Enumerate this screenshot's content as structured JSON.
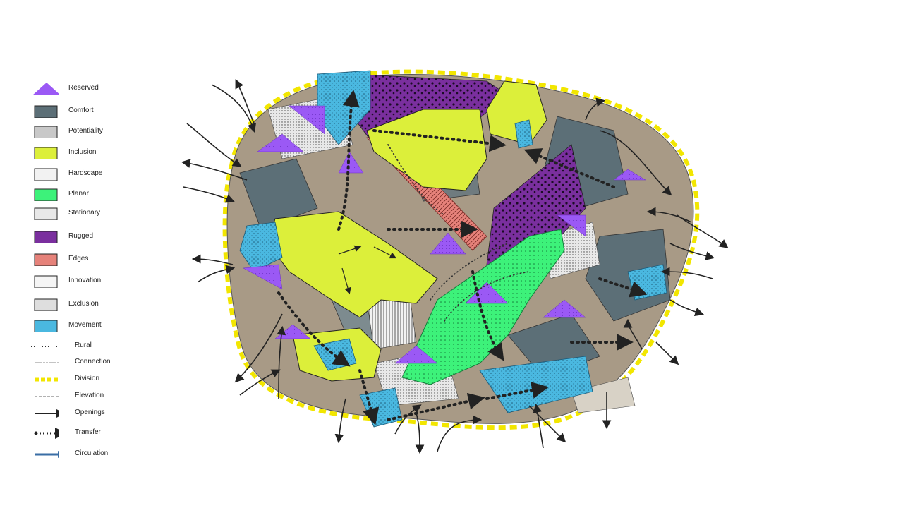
{
  "legend": {
    "items": [
      {
        "label": "Reserved",
        "swatch": "triangle",
        "color": "#9b59f5"
      },
      {
        "label": "Comfort",
        "swatch": "box",
        "color": "#5c6f77"
      },
      {
        "label": "Potentiality",
        "swatch": "box",
        "color": "#c8c8c8"
      },
      {
        "label": "Inclusion",
        "swatch": "box",
        "color": "#dcef3a"
      },
      {
        "label": "Hardscape",
        "swatch": "box",
        "color": "#f2f2f2"
      },
      {
        "label": "Planar",
        "swatch": "box",
        "color": "#3df27a"
      },
      {
        "label": "Stationary",
        "swatch": "box",
        "color": "#e8e8e8"
      },
      {
        "label": "Rugged",
        "swatch": "box",
        "color": "#7a2f9e"
      },
      {
        "label": "Edges",
        "swatch": "box",
        "color": "#e6827a"
      },
      {
        "label": "Innovation",
        "swatch": "box",
        "color": "#f5f5f5"
      },
      {
        "label": "Exclusion",
        "swatch": "box",
        "color": "#dedede"
      },
      {
        "label": "Movement",
        "swatch": "box",
        "color": "#4ab8e0"
      },
      {
        "label": "Rural",
        "swatch": "dotted-line",
        "color": "#333333"
      },
      {
        "label": "Connection",
        "swatch": "thin-line",
        "color": "#888888"
      },
      {
        "label": "Division",
        "swatch": "yellow-dash",
        "color": "#f2e600"
      },
      {
        "label": "Elevation",
        "swatch": "dashed-line",
        "color": "#666666"
      },
      {
        "label": "Openings",
        "swatch": "arrow",
        "color": "#222222"
      },
      {
        "label": "Transfer",
        "swatch": "dotted-arrow",
        "color": "#222222"
      },
      {
        "label": "Circulation",
        "swatch": "blue-arrow",
        "color": "#3a6ea5"
      }
    ]
  },
  "map": {
    "colors": {
      "reserved": "#9b59f5",
      "comfort": "#5c6f77",
      "inclusion": "#dcef3a",
      "planar": "#3df27a",
      "rugged": "#7a2f9e",
      "edges": "#e6827a",
      "movement": "#4ab8e0",
      "division": "#f2e600",
      "ground": "#a89a86",
      "arrow": "#222222"
    }
  }
}
